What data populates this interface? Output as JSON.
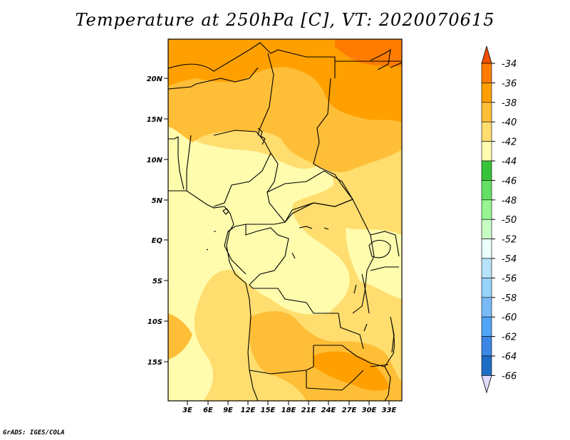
{
  "title": "Temperature at 250hPa [C], VT: 2020070615",
  "credit": "GrADS: IGES/COLA",
  "map": {
    "lat_labels": [
      "20N",
      "15N",
      "10N",
      "5N",
      "EQ",
      "5S",
      "10S",
      "15S"
    ],
    "lon_labels": [
      "3E",
      "6E",
      "9E",
      "12E",
      "15E",
      "18E",
      "21E",
      "24E",
      "27E",
      "30E",
      "33E"
    ]
  },
  "colorbar": {
    "labels": [
      "-34",
      "-36",
      "-38",
      "-40",
      "-42",
      "-44",
      "-46",
      "-48",
      "-50",
      "-52",
      "-54",
      "-56",
      "-58",
      "-60",
      "-62",
      "-64",
      "-66"
    ],
    "colors": [
      "#f05000",
      "#ff7c00",
      "#ffa000",
      "#ffbe37",
      "#ffdd6e",
      "#fffcae",
      "#36c33a",
      "#64e064",
      "#96f592",
      "#c8fdc3",
      "#eafefb",
      "#b6e3fb",
      "#96d2fa",
      "#78baf6",
      "#50a5f5",
      "#3c87e6",
      "#1e6ec8",
      "#0e47a6",
      "#141480",
      "#e0dcff"
    ]
  }
}
